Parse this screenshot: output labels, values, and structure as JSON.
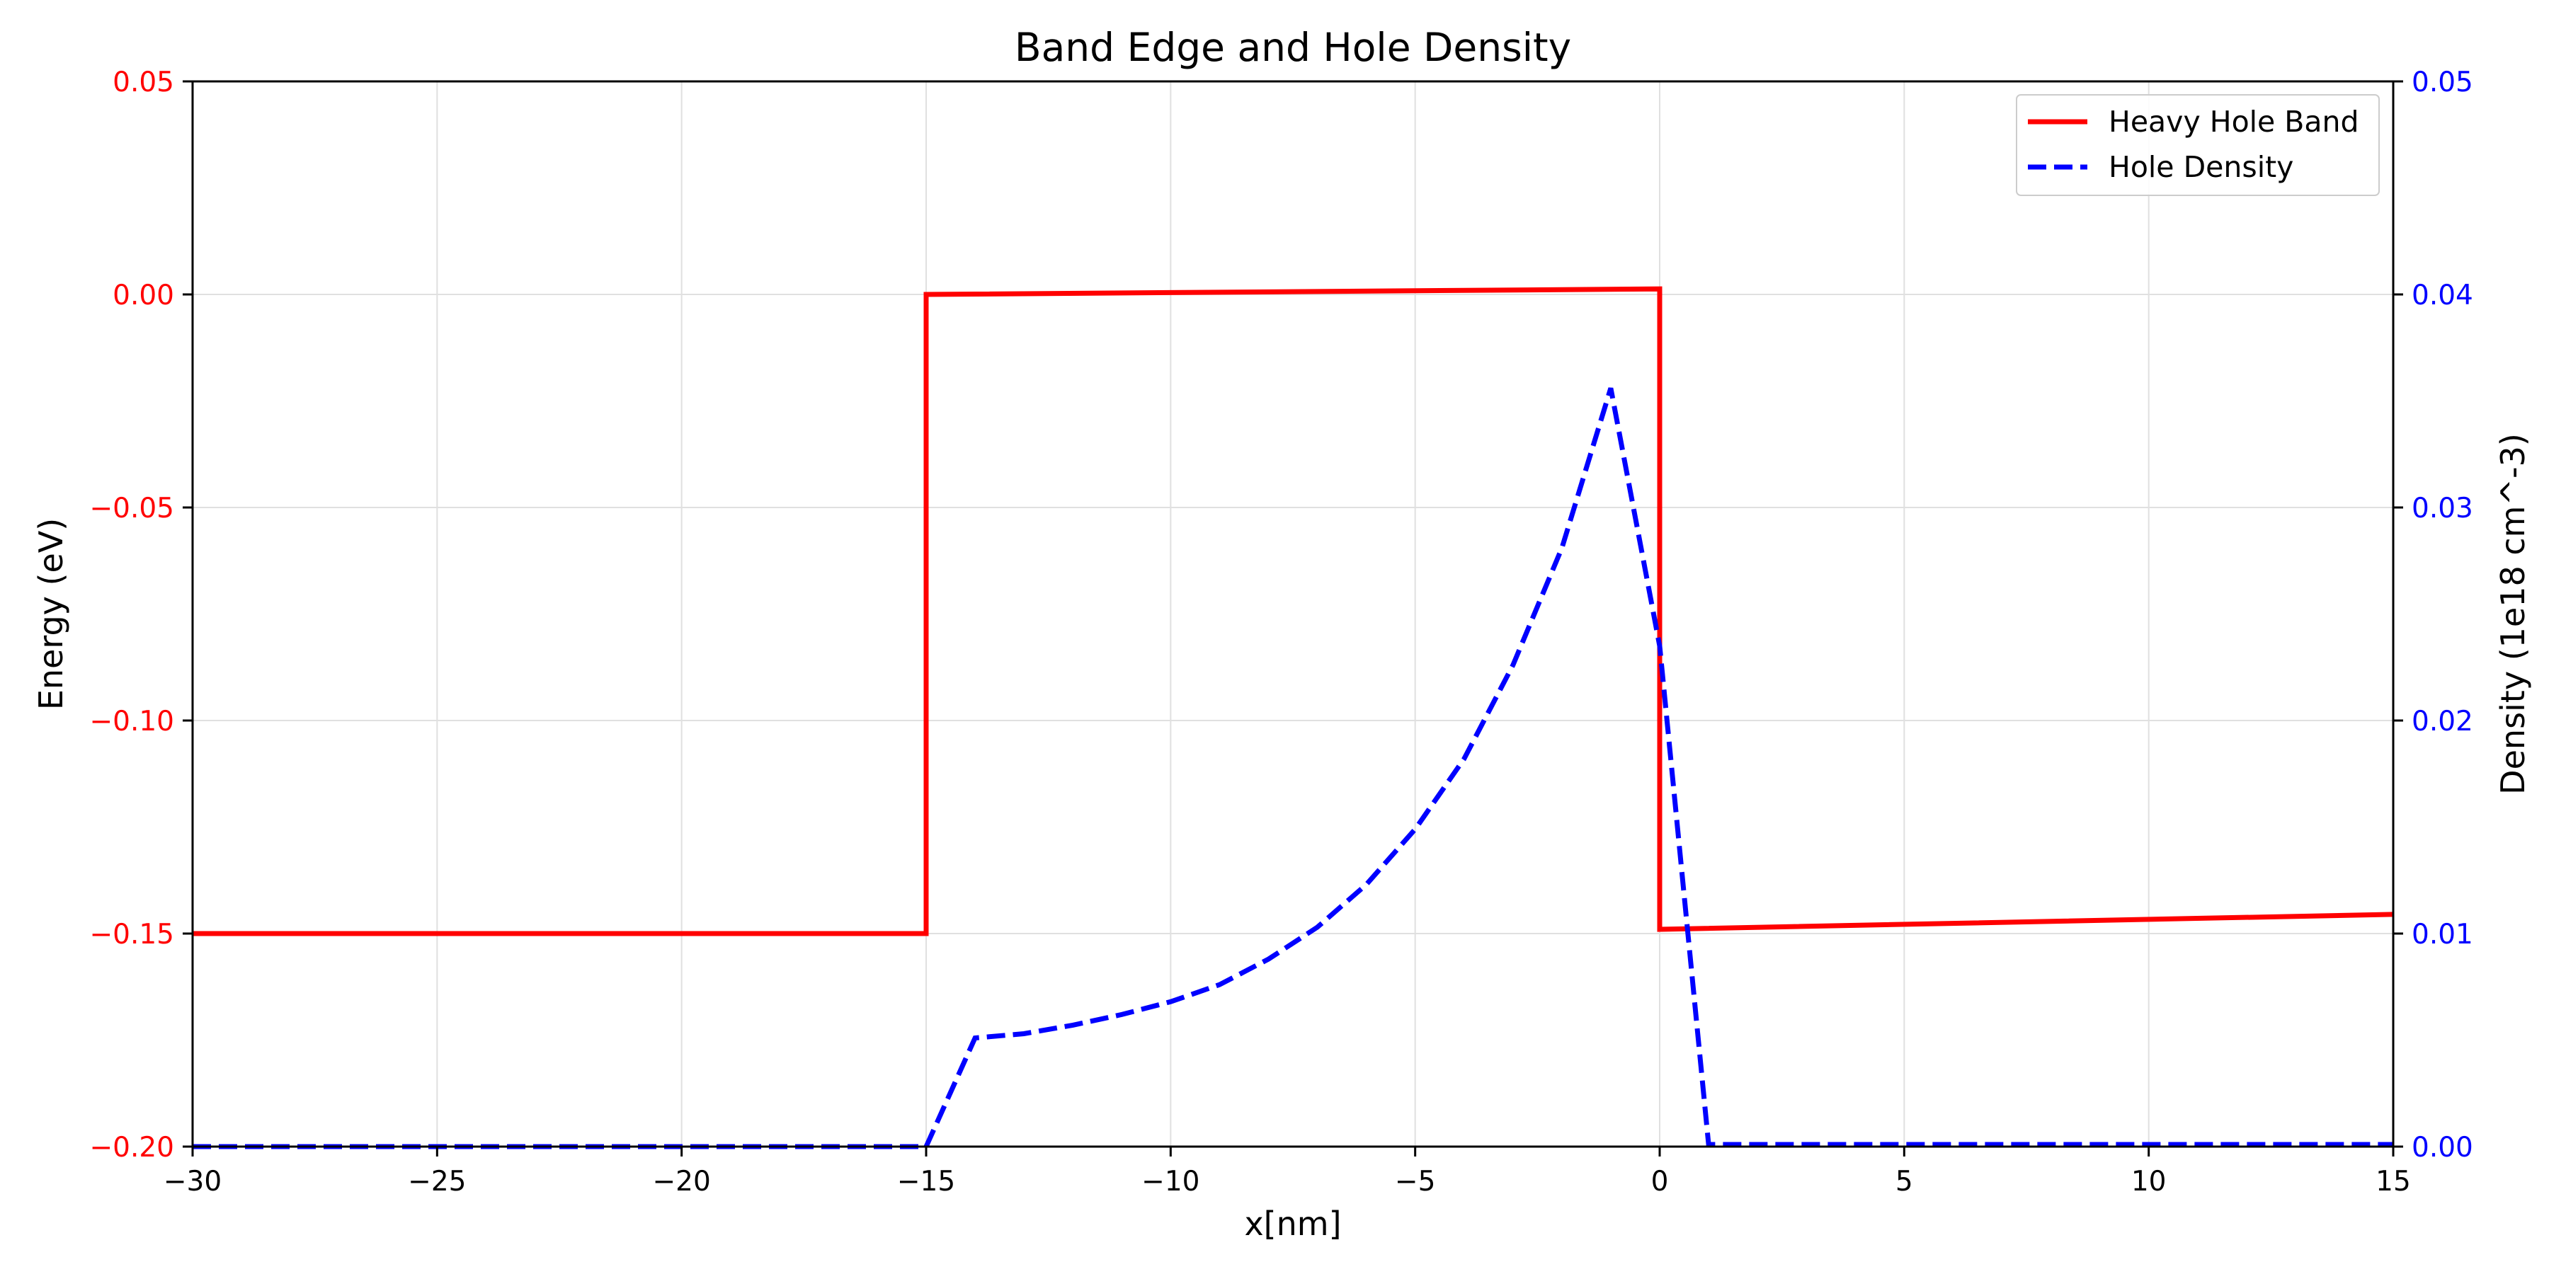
{
  "chart_data": {
    "type": "line",
    "title": "Band Edge and Hole Density",
    "xlabel": "x[nm]",
    "ylabel_left": "Energy (eV)",
    "ylabel_right": "Density (1e18 cm^-3)",
    "xlim": [
      -30,
      15
    ],
    "ylim_left": [
      -0.2,
      0.05
    ],
    "ylim_right": [
      0.0,
      0.05
    ],
    "xticks": [
      -30,
      -25,
      -20,
      -15,
      -10,
      -5,
      0,
      5,
      10,
      15
    ],
    "xtick_labels": [
      "−30",
      "−25",
      "−20",
      "−15",
      "−10",
      "−5",
      "0",
      "5",
      "10",
      "15"
    ],
    "yticks_left": [
      -0.2,
      -0.15,
      -0.1,
      -0.05,
      0.0,
      0.05
    ],
    "ytick_labels_left": [
      "−0.20",
      "−0.15",
      "−0.10",
      "−0.05",
      "0.00",
      "0.05"
    ],
    "yticks_right": [
      0.0,
      0.01,
      0.02,
      0.03,
      0.04,
      0.05
    ],
    "ytick_labels_right": [
      "0.00",
      "0.01",
      "0.02",
      "0.03",
      "0.04",
      "0.05"
    ],
    "grid": true,
    "legend_position": "top-right",
    "left_axis_color": "#ff0000",
    "right_axis_color": "#0000ff",
    "series": [
      {
        "name": "Heavy Hole Band",
        "axis": "left",
        "color": "#ff0000",
        "style": "solid",
        "x": [
          -30,
          -15,
          -15,
          0,
          0,
          15
        ],
        "y": [
          -0.15,
          -0.15,
          0.0,
          0.0013,
          -0.149,
          -0.1455
        ]
      },
      {
        "name": "Hole Density",
        "axis": "right",
        "color": "#0000ff",
        "style": "dashed",
        "x": [
          -30,
          -15,
          -14,
          -13,
          -12,
          -11,
          -10,
          -9,
          -8,
          -7,
          -6,
          -5,
          -4,
          -3,
          -2,
          -1,
          0,
          1,
          15
        ],
        "y": [
          0.0,
          0.0,
          0.0051,
          0.0053,
          0.0057,
          0.0062,
          0.0068,
          0.0076,
          0.0088,
          0.0103,
          0.0123,
          0.0149,
          0.0182,
          0.0226,
          0.0281,
          0.0356,
          0.0235,
          0.0001,
          0.0001
        ]
      }
    ]
  }
}
